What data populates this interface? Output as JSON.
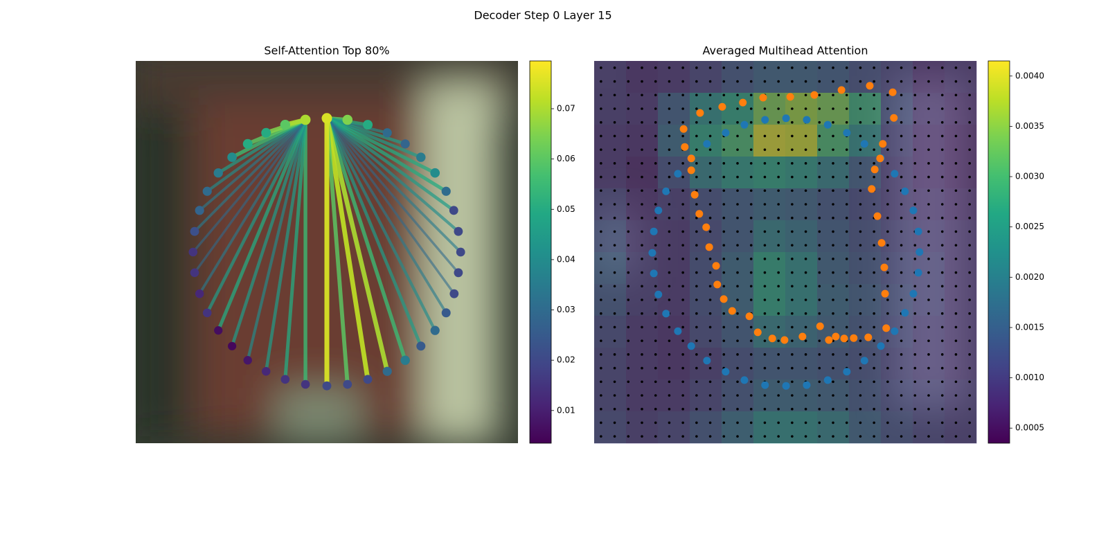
{
  "title": "Decoder Step 0 Layer 15",
  "chart_data": [
    {
      "type": "graph",
      "title": "Self-Attention Top 80%",
      "xlim": [
        0,
        100
      ],
      "ylim": [
        100,
        0
      ],
      "x": [
        50.0,
        55.4,
        60.7,
        65.8,
        70.5,
        74.6,
        78.3,
        81.2,
        83.2,
        84.4,
        85.0,
        84.4,
        83.3,
        81.2,
        78.3,
        74.6,
        70.5,
        65.8,
        60.7,
        55.4,
        50.0,
        44.4,
        39.1,
        34.1,
        29.3,
        25.2,
        21.6,
        18.7,
        16.7,
        15.4,
        15.0,
        15.4,
        16.7,
        18.7,
        21.6,
        25.2,
        29.3,
        34.1,
        39.1,
        44.4
      ],
      "y": [
        15.0,
        15.4,
        16.7,
        18.8,
        21.7,
        25.2,
        29.3,
        34.1,
        39.1,
        44.6,
        50.0,
        55.4,
        60.9,
        65.9,
        70.5,
        74.6,
        78.3,
        81.2,
        83.3,
        84.6,
        85.0,
        84.6,
        83.3,
        81.2,
        78.3,
        74.6,
        70.5,
        65.9,
        60.9,
        55.4,
        50.0,
        44.6,
        39.1,
        34.1,
        29.3,
        25.2,
        21.7,
        18.8,
        16.7,
        15.4
      ],
      "values": [
        0.075,
        0.065,
        0.05,
        0.03,
        0.028,
        0.035,
        0.04,
        0.03,
        0.02,
        0.02,
        0.02,
        0.02,
        0.02,
        0.025,
        0.03,
        0.025,
        0.035,
        0.03,
        0.02,
        0.02,
        0.02,
        0.015,
        0.015,
        0.012,
        0.008,
        0.005,
        0.006,
        0.015,
        0.012,
        0.015,
        0.015,
        0.022,
        0.028,
        0.03,
        0.035,
        0.04,
        0.05,
        0.05,
        0.06,
        0.07
      ],
      "edges": {
        "source": [
          0,
          0,
          0,
          0,
          0,
          0,
          0,
          0,
          0,
          0,
          0,
          0,
          0,
          0,
          0,
          0,
          0,
          0,
          0,
          0,
          39,
          39,
          39,
          39,
          39,
          39,
          39,
          39,
          39,
          39,
          39,
          39,
          39,
          39,
          39,
          39,
          39,
          39
        ],
        "target": [
          1,
          2,
          3,
          4,
          5,
          6,
          7,
          8,
          9,
          10,
          11,
          12,
          13,
          14,
          15,
          16,
          17,
          18,
          19,
          20,
          21,
          22,
          23,
          24,
          25,
          26,
          27,
          28,
          29,
          30,
          31,
          32,
          33,
          34,
          35,
          36,
          37,
          38
        ],
        "weights": [
          0.06,
          0.05,
          0.04,
          0.045,
          0.045,
          0.05,
          0.05,
          0.045,
          0.04,
          0.035,
          0.03,
          0.03,
          0.035,
          0.04,
          0.045,
          0.055,
          0.07,
          0.072,
          0.06,
          0.075,
          0.055,
          0.05,
          0.045,
          0.04,
          0.045,
          0.05,
          0.045,
          0.035,
          0.03,
          0.03,
          0.035,
          0.035,
          0.04,
          0.045,
          0.055,
          0.06,
          0.065,
          0.07
        ]
      },
      "colormap": "viridis",
      "clim": [
        0.0035,
        0.0795
      ],
      "cticks": [
        0.01,
        0.02,
        0.03,
        0.04,
        0.05,
        0.06,
        0.07
      ]
    },
    {
      "type": "heatmap",
      "title": "Averaged Multihead Attention",
      "xlim": [
        0,
        100
      ],
      "ylim": [
        100,
        0
      ],
      "matrix": [
        [
          0.0009,
          0.0007,
          0.0008,
          0.001,
          0.0013,
          0.0015,
          0.0015,
          0.0014,
          0.0012,
          0.001,
          0.0007,
          0.0008
        ],
        [
          0.0009,
          0.0008,
          0.0014,
          0.0022,
          0.0026,
          0.0034,
          0.0036,
          0.0034,
          0.0028,
          0.0012,
          0.0008,
          0.0007
        ],
        [
          0.0008,
          0.0007,
          0.0016,
          0.0026,
          0.003,
          0.004,
          0.0039,
          0.003,
          0.0022,
          0.001,
          0.0007,
          0.0006
        ],
        [
          0.0008,
          0.0006,
          0.0012,
          0.002,
          0.0024,
          0.0026,
          0.0024,
          0.002,
          0.0014,
          0.0009,
          0.0007,
          0.0006
        ],
        [
          0.001,
          0.0007,
          0.0009,
          0.0012,
          0.0014,
          0.0016,
          0.0015,
          0.0013,
          0.0011,
          0.0009,
          0.0008,
          0.0007
        ],
        [
          0.0012,
          0.0008,
          0.0008,
          0.0011,
          0.0014,
          0.002,
          0.0018,
          0.0014,
          0.0012,
          0.001,
          0.0009,
          0.0008
        ],
        [
          0.0014,
          0.0009,
          0.0008,
          0.0012,
          0.0016,
          0.0026,
          0.0022,
          0.0015,
          0.0013,
          0.0011,
          0.001,
          0.0008
        ],
        [
          0.0013,
          0.0009,
          0.0008,
          0.0012,
          0.0016,
          0.0026,
          0.0022,
          0.0016,
          0.0014,
          0.0012,
          0.001,
          0.0008
        ],
        [
          0.0011,
          0.0008,
          0.0007,
          0.0011,
          0.0014,
          0.002,
          0.0018,
          0.0015,
          0.0013,
          0.0011,
          0.0009,
          0.0008
        ],
        [
          0.001,
          0.0008,
          0.0007,
          0.0009,
          0.0012,
          0.0014,
          0.0014,
          0.0013,
          0.0012,
          0.001,
          0.0009,
          0.0008
        ],
        [
          0.001,
          0.0008,
          0.0008,
          0.001,
          0.0013,
          0.0016,
          0.0016,
          0.0015,
          0.0013,
          0.0011,
          0.001,
          0.0009
        ],
        [
          0.0011,
          0.0009,
          0.001,
          0.0013,
          0.0017,
          0.0022,
          0.0022,
          0.002,
          0.0015,
          0.0012,
          0.001,
          0.0009
        ]
      ],
      "series": [
        {
          "color": "#1f77b4",
          "x": [
            39.3,
            44.7,
            50.2,
            55.6,
            61.1,
            66.1,
            70.7,
            75.0,
            78.6,
            81.3,
            83.5,
            84.8,
            85.1,
            84.8,
            83.5,
            81.3,
            78.6,
            75.0,
            70.7,
            66.1,
            61.1,
            55.6,
            50.2,
            44.7,
            39.3,
            34.4,
            29.5,
            25.4,
            21.9,
            18.8,
            16.8,
            15.6,
            15.2,
            15.6,
            16.8,
            18.8,
            21.9,
            25.4,
            29.5,
            34.4
          ],
          "y": [
            16.7,
            15.4,
            15.0,
            15.4,
            16.7,
            18.8,
            21.7,
            25.4,
            29.5,
            34.1,
            39.1,
            44.6,
            50.0,
            55.4,
            60.9,
            65.9,
            70.7,
            74.6,
            78.4,
            81.3,
            83.5,
            84.8,
            85.0,
            84.8,
            83.5,
            81.3,
            78.4,
            74.6,
            70.7,
            66.1,
            61.1,
            55.6,
            50.2,
            44.6,
            39.1,
            34.1,
            29.5,
            25.4,
            21.7,
            18.8
          ]
        },
        {
          "color": "#ff7f0e",
          "x": [
            23.4,
            27.7,
            33.5,
            38.9,
            44.2,
            51.3,
            57.6,
            64.7,
            72.1,
            78.1,
            78.4,
            75.5,
            74.8,
            73.4,
            72.6,
            74.1,
            75.2,
            75.9,
            76.1,
            76.4,
            71.7,
            67.9,
            65.4,
            63.2,
            61.4,
            59.1,
            54.5,
            49.8,
            46.6,
            42.8,
            40.6,
            36.1,
            33.9,
            32.2,
            31.9,
            30.1,
            29.3,
            27.5,
            26.3,
            25.4,
            25.4,
            23.7
          ],
          "y": [
            17.8,
            13.6,
            12.0,
            10.9,
            9.6,
            9.4,
            8.9,
            7.6,
            6.5,
            8.2,
            14.9,
            21.7,
            25.5,
            28.4,
            33.5,
            40.6,
            47.6,
            54.0,
            60.9,
            69.9,
            72.3,
            72.5,
            72.6,
            72.1,
            73.0,
            69.4,
            72.1,
            73.0,
            72.6,
            71.0,
            66.8,
            65.4,
            62.3,
            58.5,
            53.6,
            48.7,
            43.5,
            40.0,
            35.0,
            28.6,
            25.5,
            22.5
          ]
        }
      ],
      "colormap": "viridis",
      "clim": [
        0.00035,
        0.00415
      ],
      "cticks": [
        0.0005,
        {
          "value": 0.001,
          "label": "0.0010"
        },
        0.0015,
        {
          "value": 0.002,
          "label": "0.0020"
        },
        0.0025,
        {
          "value": 0.003,
          "label": "0.0030"
        },
        0.0035,
        {
          "value": 0.004,
          "label": "0.0040"
        }
      ]
    }
  ]
}
